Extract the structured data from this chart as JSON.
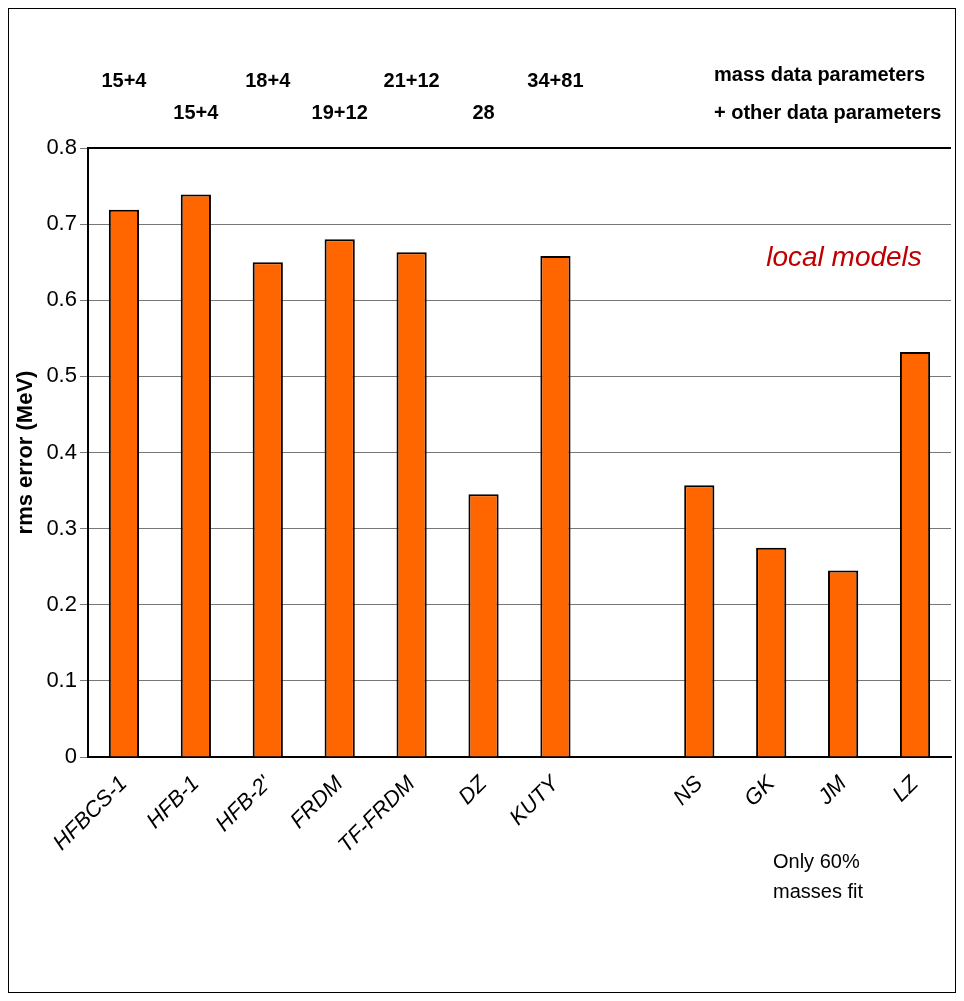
{
  "chart_data": {
    "type": "bar",
    "categories": [
      "HFBCS-1",
      "HFB-1",
      "HFB-2'",
      "FRDM",
      "TF-FRDM",
      "DZ",
      "KUTY",
      null,
      "NS",
      "GK",
      "JM",
      "LZ"
    ],
    "values": [
      0.719,
      0.739,
      0.65,
      0.68,
      0.663,
      0.345,
      0.658,
      null,
      0.357,
      0.275,
      0.245,
      0.532
    ],
    "color": "#ff6600",
    "ylabel": "rms error (MeV)",
    "ylim": [
      0,
      0.8
    ],
    "yticks": [
      0,
      0.1,
      0.2,
      0.3,
      0.4,
      0.5,
      0.6,
      0.7,
      0.8
    ],
    "grid": "y",
    "legend": false,
    "annotations": [
      "15+4",
      "15+4",
      "18+4",
      "19+12",
      "21+12",
      "28",
      "34+81",
      "mass data parameters",
      "+ other data parameters",
      "local models",
      "Only 60% masses fit"
    ]
  }
}
